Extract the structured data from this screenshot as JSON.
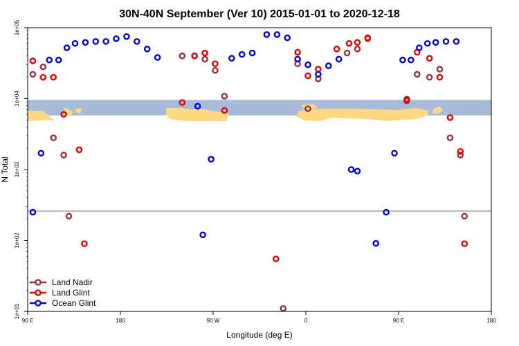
{
  "chart_data": {
    "type": "scatter",
    "title": "30N-40N September (Ver 10)   2015-01-01 to 2020-12-18",
    "xlabel": "Longitude (deg E)",
    "ylabel": "N Total",
    "xlim": [
      90,
      540
    ],
    "ylog": true,
    "ylim": [
      10,
      100000
    ],
    "x_ticks": [
      {
        "value": 90,
        "label": "90 E"
      },
      {
        "value": 180,
        "label": "180"
      },
      {
        "value": 270,
        "label": "90 W"
      },
      {
        "value": 360,
        "label": "0"
      },
      {
        "value": 450,
        "label": "90 E"
      },
      {
        "value": 540,
        "label": "180"
      }
    ],
    "y_ticks": [
      {
        "value": 10,
        "label": "1e+01"
      },
      {
        "value": 100,
        "label": "1e+02"
      },
      {
        "value": 1000,
        "label": "1e+03"
      },
      {
        "value": 10000,
        "label": "1e+04"
      },
      {
        "value": 100000,
        "label": "1e+05"
      }
    ],
    "reference_line_y": 260,
    "map_band_y": [
      5800,
      9600
    ],
    "legend_position": "bottom-left",
    "series": [
      {
        "name": "Land Nadir",
        "color": "#993333",
        "points": [
          [
            95,
            22000
          ],
          [
            105,
            28000
          ],
          [
            115,
            2800
          ],
          [
            125,
            1600
          ],
          [
            130,
            220
          ],
          [
            240,
            40000
          ],
          [
            252,
            40000
          ],
          [
            262,
            36000
          ],
          [
            272,
            25000
          ],
          [
            281,
            10800
          ],
          [
            338,
            11
          ],
          [
            352,
            31000
          ],
          [
            362,
            7200
          ],
          [
            372,
            19000
          ],
          [
            400,
            44000
          ],
          [
            410,
            50000
          ],
          [
            420,
            70000
          ],
          [
            458,
            9300
          ],
          [
            468,
            22000
          ],
          [
            480,
            20000
          ],
          [
            490,
            26000
          ],
          [
            500,
            2800
          ],
          [
            510,
            1600
          ],
          [
            514,
            220
          ]
        ]
      },
      {
        "name": "Land Glint",
        "color": "#ee0000",
        "points": [
          [
            95,
            34000
          ],
          [
            105,
            20000
          ],
          [
            115,
            20000
          ],
          [
            125,
            6000
          ],
          [
            140,
            1900
          ],
          [
            145,
            90
          ],
          [
            240,
            8800
          ],
          [
            252,
            40000
          ],
          [
            262,
            44000
          ],
          [
            272,
            31000
          ],
          [
            281,
            6800
          ],
          [
            331,
            55
          ],
          [
            352,
            45000
          ],
          [
            362,
            21000
          ],
          [
            372,
            26000
          ],
          [
            390,
            50000
          ],
          [
            402,
            60000
          ],
          [
            410,
            62000
          ],
          [
            420,
            72000
          ],
          [
            458,
            9800
          ],
          [
            468,
            45000
          ],
          [
            480,
            37000
          ],
          [
            490,
            20000
          ],
          [
            500,
            5400
          ],
          [
            510,
            1800
          ],
          [
            514,
            90
          ]
        ]
      },
      {
        "name": "Ocean Glint",
        "color": "#0000ee",
        "points": [
          [
            95,
            250
          ],
          [
            103,
            1700
          ],
          [
            111,
            35000
          ],
          [
            120,
            35000
          ],
          [
            128,
            52000
          ],
          [
            136,
            60000
          ],
          [
            146,
            62000
          ],
          [
            156,
            64000
          ],
          [
            166,
            64000
          ],
          [
            176,
            70000
          ],
          [
            186,
            75000
          ],
          [
            196,
            64000
          ],
          [
            206,
            50000
          ],
          [
            216,
            38000
          ],
          [
            255,
            7800
          ],
          [
            260,
            120
          ],
          [
            268,
            1400
          ],
          [
            288,
            37000
          ],
          [
            298,
            42000
          ],
          [
            308,
            44000
          ],
          [
            322,
            80000
          ],
          [
            332,
            80000
          ],
          [
            342,
            72000
          ],
          [
            352,
            36000
          ],
          [
            362,
            30000
          ],
          [
            372,
            22000
          ],
          [
            382,
            29000
          ],
          [
            392,
            36000
          ],
          [
            404,
            1000
          ],
          [
            410,
            950
          ],
          [
            428,
            91
          ],
          [
            438,
            250
          ],
          [
            446,
            1700
          ],
          [
            454,
            35000
          ],
          [
            462,
            35000
          ],
          [
            470,
            52000
          ],
          [
            478,
            60000
          ],
          [
            486,
            62000
          ],
          [
            496,
            64000
          ],
          [
            506,
            64000
          ]
        ]
      }
    ]
  }
}
